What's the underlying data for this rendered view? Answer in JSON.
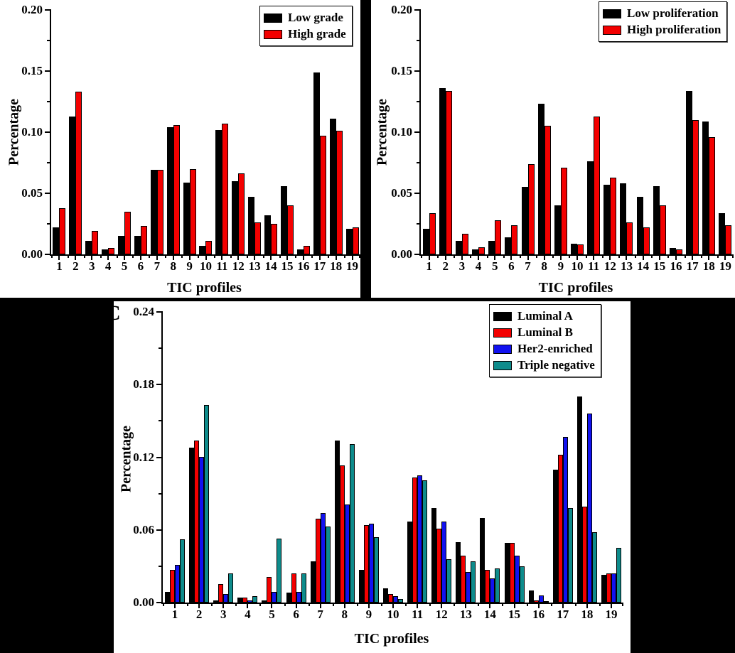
{
  "figure": {
    "panel_c_label": "C",
    "colors": {
      "black": "#000000",
      "red": "#f30000",
      "blue": "#1212f0",
      "teal": "#0e8c8c"
    }
  },
  "chart_data": [
    {
      "type": "bar",
      "panel": "top-left",
      "xlabel": "TIC profiles",
      "ylabel": "Percentage",
      "ylim": [
        0,
        0.2
      ],
      "yticks": [
        0,
        0.05,
        0.1,
        0.15,
        0.2
      ],
      "ytick_labels": [
        "0.00",
        "0.05",
        "0.10",
        "0.15",
        "0.20"
      ],
      "grid": false,
      "legend_position": "top-right",
      "categories": [
        "1",
        "2",
        "3",
        "4",
        "5",
        "6",
        "7",
        "8",
        "9",
        "10",
        "11",
        "12",
        "13",
        "14",
        "15",
        "16",
        "17",
        "18",
        "19"
      ],
      "series": [
        {
          "name": "Low grade",
          "color": "#000000",
          "values": [
            0.022,
            0.113,
            0.011,
            0.004,
            0.015,
            0.015,
            0.069,
            0.104,
            0.059,
            0.007,
            0.102,
            0.06,
            0.047,
            0.032,
            0.056,
            0.004,
            0.149,
            0.111,
            0.021
          ]
        },
        {
          "name": "High grade",
          "color": "#f30000",
          "values": [
            0.038,
            0.133,
            0.019,
            0.005,
            0.035,
            0.023,
            0.069,
            0.106,
            0.07,
            0.011,
            0.107,
            0.066,
            0.026,
            0.025,
            0.04,
            0.007,
            0.097,
            0.101,
            0.022
          ]
        }
      ]
    },
    {
      "type": "bar",
      "panel": "top-right",
      "xlabel": "TIC profiles",
      "ylabel": "Percentage",
      "ylim": [
        0,
        0.2
      ],
      "yticks": [
        0,
        0.05,
        0.1,
        0.15,
        0.2
      ],
      "ytick_labels": [
        "0.00",
        "0.05",
        "0.10",
        "0.15",
        "0.20"
      ],
      "grid": false,
      "legend_position": "top-right",
      "categories": [
        "1",
        "2",
        "3",
        "4",
        "5",
        "6",
        "7",
        "8",
        "9",
        "10",
        "11",
        "12",
        "13",
        "14",
        "15",
        "16",
        "17",
        "18",
        "19"
      ],
      "series": [
        {
          "name": "Low proliferation",
          "color": "#000000",
          "values": [
            0.021,
            0.136,
            0.011,
            0.004,
            0.011,
            0.014,
            0.055,
            0.123,
            0.04,
            0.009,
            0.076,
            0.057,
            0.058,
            0.047,
            0.056,
            0.005,
            0.134,
            0.109,
            0.034
          ]
        },
        {
          "name": "High proliferation",
          "color": "#f30000",
          "values": [
            0.034,
            0.134,
            0.017,
            0.006,
            0.028,
            0.024,
            0.074,
            0.105,
            0.071,
            0.008,
            0.113,
            0.063,
            0.026,
            0.022,
            0.04,
            0.004,
            0.11,
            0.096,
            0.024
          ]
        }
      ]
    },
    {
      "type": "bar",
      "panel": "bottom",
      "panel_label": "C",
      "xlabel": "TIC profiles",
      "ylabel": "Percentage",
      "ylim": [
        0,
        0.24
      ],
      "yticks": [
        0,
        0.06,
        0.12,
        0.18,
        0.24
      ],
      "ytick_labels": [
        "0.00",
        "0.06",
        "0.12",
        "0.18",
        "0.24"
      ],
      "grid": false,
      "legend_position": "top-right",
      "categories": [
        "1",
        "2",
        "3",
        "4",
        "5",
        "6",
        "7",
        "8",
        "9",
        "10",
        "11",
        "12",
        "13",
        "14",
        "15",
        "16",
        "17",
        "18",
        "19"
      ],
      "series": [
        {
          "name": "Luminal A",
          "color": "#000000",
          "values": [
            0.009,
            0.128,
            0.002,
            0.004,
            0.002,
            0.008,
            0.034,
            0.134,
            0.027,
            0.012,
            0.067,
            0.078,
            0.05,
            0.07,
            0.049,
            0.01,
            0.11,
            0.17,
            0.023
          ]
        },
        {
          "name": "Luminal B",
          "color": "#f30000",
          "values": [
            0.027,
            0.134,
            0.015,
            0.004,
            0.021,
            0.024,
            0.069,
            0.113,
            0.064,
            0.007,
            0.103,
            0.061,
            0.039,
            0.027,
            0.049,
            0.002,
            0.122,
            0.079,
            0.024
          ]
        },
        {
          "name": "Her2-enriched",
          "color": "#1212f0",
          "values": [
            0.031,
            0.12,
            0.007,
            0.002,
            0.009,
            0.009,
            0.074,
            0.081,
            0.065,
            0.005,
            0.105,
            0.067,
            0.025,
            0.02,
            0.039,
            0.006,
            0.137,
            0.156,
            0.024
          ]
        },
        {
          "name": "Triple negative",
          "color": "#0e8c8c",
          "values": [
            0.052,
            0.163,
            0.024,
            0.005,
            0.053,
            0.024,
            0.063,
            0.131,
            0.054,
            0.003,
            0.101,
            0.036,
            0.034,
            0.028,
            0.03,
            0.001,
            0.078,
            0.058,
            0.045
          ]
        }
      ]
    }
  ]
}
